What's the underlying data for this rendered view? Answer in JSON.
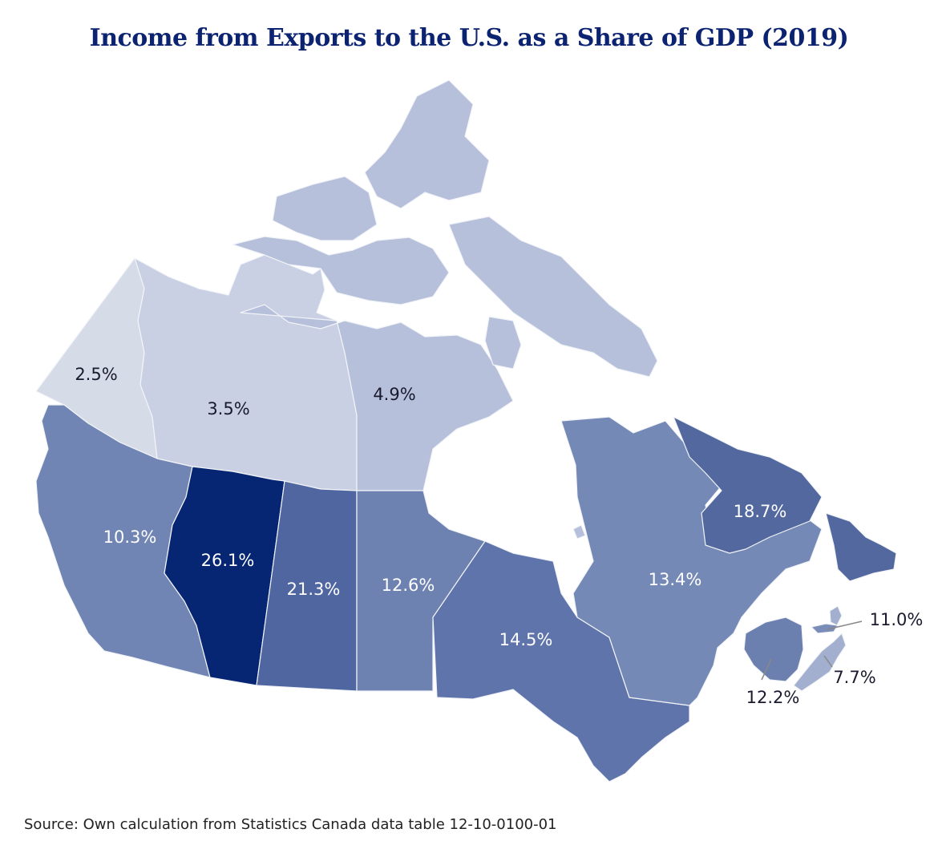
{
  "title": "Income from Exports to the U.S. as a Share of GDP (2019)",
  "source": "Source: Own calculation from Statistics Canada data table 12-10-0100-01",
  "colors": {
    "title": "#0b2370",
    "water": "#ffffff",
    "border": "#f2f4f8",
    "scale_low": "#d8dde9",
    "scale_high": "#062572"
  },
  "regions": {
    "yukon": {
      "value": "2.5%",
      "color": "#d6dbe8",
      "label_color": "#1a1a2e"
    },
    "nwt": {
      "value": "3.5%",
      "color": "#c9d0e3",
      "label_color": "#1a1a2e"
    },
    "nunavut": {
      "value": "4.9%",
      "color": "#b6c0da",
      "label_color": "#1a1a2e"
    },
    "bc": {
      "value": "10.3%",
      "color": "#7085b3",
      "label_color": "#ffffff"
    },
    "alberta": {
      "value": "26.1%",
      "color": "#062572",
      "label_color": "#ffffff"
    },
    "saskatchewan": {
      "value": "21.3%",
      "color": "#4f66a1",
      "label_color": "#ffffff"
    },
    "manitoba": {
      "value": "12.6%",
      "color": "#6e82b1",
      "label_color": "#ffffff"
    },
    "ontario": {
      "value": "14.5%",
      "color": "#5f74aa",
      "label_color": "#ffffff"
    },
    "quebec": {
      "value": "13.4%",
      "color": "#7589b6",
      "label_color": "#ffffff"
    },
    "newfoundland": {
      "value": "18.7%",
      "color": "#52689f",
      "label_color": "#ffffff"
    },
    "new_brunswick": {
      "value": "12.2%",
      "color": "#6c80b0",
      "label_color": "#1a1a2e"
    },
    "pei": {
      "value": "11.0%",
      "color": "#7a8db8",
      "label_color": "#1a1a2e"
    },
    "nova_scotia": {
      "value": "7.7%",
      "color": "#a2afcf",
      "label_color": "#1a1a2e"
    }
  }
}
